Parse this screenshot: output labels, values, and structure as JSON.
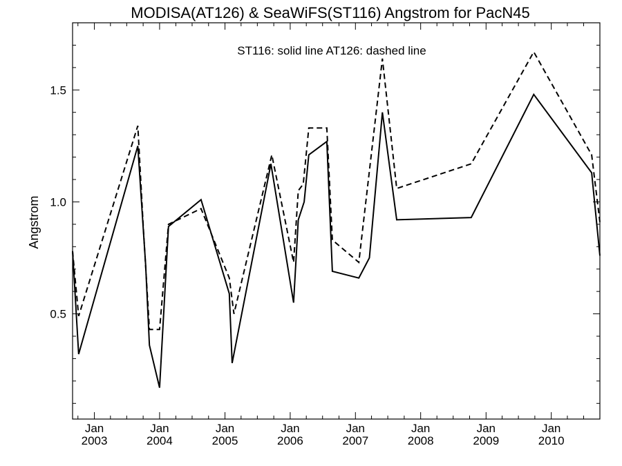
{
  "chart_data": {
    "type": "line",
    "title": "MODISA(AT126) & SeaWiFS(ST116)  Angstrom for PacN45",
    "annotation": "ST116: solid line   AT126: dashed line",
    "xlabel": "",
    "ylabel": "Angstrom",
    "xlim": [
      "2002-09-01",
      "2010-09-30"
    ],
    "ylim": [
      0.03,
      1.8
    ],
    "y_ticks": [
      0.5,
      1.0,
      1.5
    ],
    "y_tick_labels": [
      "0.5",
      "1.0",
      "1.5"
    ],
    "x_ticks": [
      "2003-01-01",
      "2004-01-01",
      "2005-01-01",
      "2006-01-01",
      "2007-01-01",
      "2008-01-01",
      "2009-01-01",
      "2010-01-01"
    ],
    "x_tick_labels": [
      {
        "month": "Jan",
        "year": "2003"
      },
      {
        "month": "Jan",
        "year": "2004"
      },
      {
        "month": "Jan",
        "year": "2005"
      },
      {
        "month": "Jan",
        "year": "2006"
      },
      {
        "month": "Jan",
        "year": "2007"
      },
      {
        "month": "Jan",
        "year": "2008"
      },
      {
        "month": "Jan",
        "year": "2009"
      },
      {
        "month": "Jan",
        "year": "2010"
      }
    ],
    "grid": false,
    "series": [
      {
        "name": "ST116",
        "style": "solid",
        "color": "#000000",
        "points": [
          [
            "2002-09-01",
            0.78
          ],
          [
            "2002-10-05",
            0.32
          ],
          [
            "2003-09-01",
            1.25
          ],
          [
            "2003-10-15",
            0.72
          ],
          [
            "2003-11-05",
            0.36
          ],
          [
            "2004-01-01",
            0.17
          ],
          [
            "2004-02-20",
            0.89
          ],
          [
            "2004-08-20",
            1.01
          ],
          [
            "2005-01-25",
            0.59
          ],
          [
            "2005-02-10",
            0.28
          ],
          [
            "2005-09-15",
            1.17
          ],
          [
            "2006-01-20",
            0.55
          ],
          [
            "2006-02-15",
            0.92
          ],
          [
            "2006-03-20",
            1.0
          ],
          [
            "2006-04-15",
            1.21
          ],
          [
            "2006-07-25",
            1.27
          ],
          [
            "2006-08-25",
            0.69
          ],
          [
            "2007-01-20",
            0.66
          ],
          [
            "2007-03-20",
            0.75
          ],
          [
            "2007-06-01",
            1.4
          ],
          [
            "2007-08-20",
            0.92
          ],
          [
            "2008-10-10",
            0.93
          ],
          [
            "2009-09-25",
            1.48
          ],
          [
            "2010-08-15",
            1.13
          ],
          [
            "2010-09-30",
            0.76
          ]
        ]
      },
      {
        "name": "AT126",
        "style": "dashed",
        "color": "#000000",
        "points": [
          [
            "2002-09-01",
            0.78
          ],
          [
            "2002-10-05",
            0.49
          ],
          [
            "2003-09-01",
            1.34
          ],
          [
            "2003-10-01",
            0.9
          ],
          [
            "2003-11-05",
            0.43
          ],
          [
            "2004-01-01",
            0.43
          ],
          [
            "2004-02-20",
            0.9
          ],
          [
            "2004-08-20",
            0.97
          ],
          [
            "2005-01-25",
            0.66
          ],
          [
            "2005-02-20",
            0.5
          ],
          [
            "2005-09-20",
            1.21
          ],
          [
            "2006-01-20",
            0.73
          ],
          [
            "2006-02-15",
            1.05
          ],
          [
            "2006-03-15",
            1.08
          ],
          [
            "2006-04-15",
            1.33
          ],
          [
            "2006-07-25",
            1.33
          ],
          [
            "2006-08-25",
            0.83
          ],
          [
            "2007-01-20",
            0.73
          ],
          [
            "2007-06-01",
            1.64
          ],
          [
            "2007-08-20",
            1.06
          ],
          [
            "2008-10-10",
            1.17
          ],
          [
            "2009-09-25",
            1.67
          ],
          [
            "2010-08-15",
            1.21
          ],
          [
            "2010-09-30",
            0.91
          ]
        ]
      }
    ]
  }
}
